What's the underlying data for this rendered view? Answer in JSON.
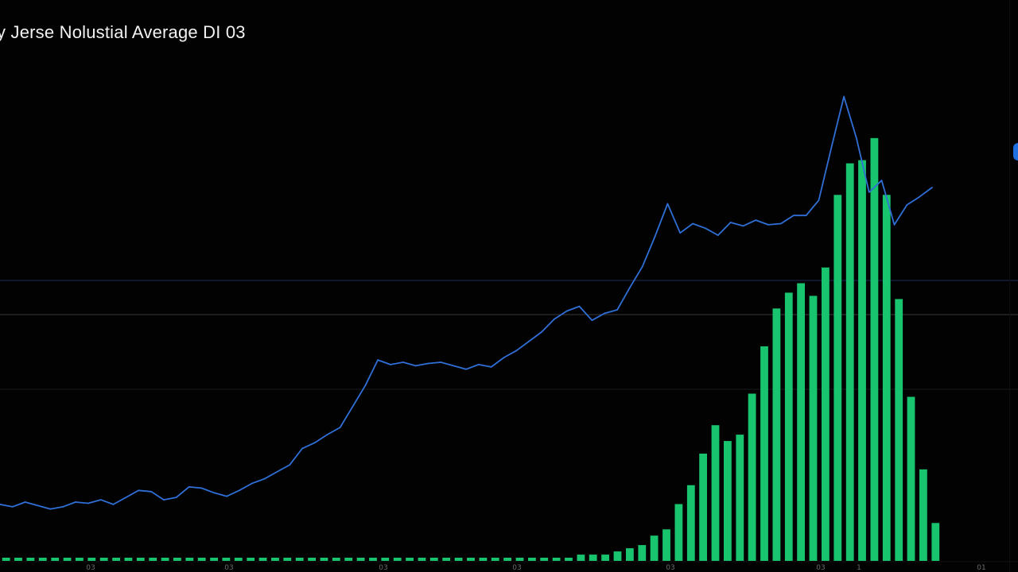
{
  "window": {
    "title": "y Jerse Nolustial Average  DI 03"
  },
  "colors": {
    "background": "#020203",
    "price_line": "#2f6fd6",
    "volume_bar": "#19c46e",
    "gridline": "#1a1a1a",
    "hline_blue": "#1d2a55",
    "hline_gray": "#3a3a3a"
  },
  "chart_data": [
    {
      "type": "line",
      "title": "y Jerse Nolustial Average  DI 03",
      "x_tick_labels": [
        "03",
        "03",
        "03",
        "03",
        "03",
        "03",
        "1",
        "01"
      ],
      "series": [
        {
          "values": [
            5580,
            5560,
            5600,
            5570,
            5540,
            5560,
            5600,
            5590,
            5620,
            5580,
            5640,
            5700,
            5690,
            5620,
            5640,
            5730,
            5720,
            5680,
            5650,
            5700,
            5760,
            5800,
            5860,
            5920,
            6060,
            6110,
            6180,
            6240,
            6420,
            6600,
            6820,
            6780,
            6800,
            6770,
            6790,
            6800,
            6770,
            6740,
            6780,
            6760,
            6840,
            6900,
            6980,
            7060,
            7170,
            7240,
            7280,
            7160,
            7220,
            7250,
            7440,
            7620,
            7880,
            8160,
            7910,
            7990,
            7950,
            7890,
            8000,
            7970,
            8020,
            7980,
            7990,
            8060,
            8060,
            8190,
            8640,
            9080,
            8720,
            8260,
            8360,
            7980,
            8150,
            8220,
            8300
          ]
        }
      ],
      "ylim": [
        5000,
        9500
      ],
      "grid": true
    },
    {
      "type": "bar",
      "series": [
        {
          "values": [
            1,
            1,
            1,
            1,
            1,
            1,
            1,
            1,
            1,
            1,
            1,
            1,
            1,
            1,
            1,
            1,
            1,
            1,
            1,
            1,
            1,
            1,
            1,
            1,
            1,
            1,
            1,
            1,
            1,
            1,
            1,
            1,
            1,
            1,
            1,
            1,
            1,
            1,
            1,
            1,
            1,
            1,
            1,
            1,
            1,
            1,
            1,
            2,
            2,
            2,
            3,
            4,
            5,
            8,
            10,
            18,
            24,
            34,
            43,
            38,
            40,
            53,
            68,
            80,
            85,
            88,
            84,
            93,
            116,
            126,
            127,
            134,
            116,
            83,
            52,
            29,
            12
          ]
        }
      ],
      "ylim": [
        0,
        140
      ]
    }
  ]
}
